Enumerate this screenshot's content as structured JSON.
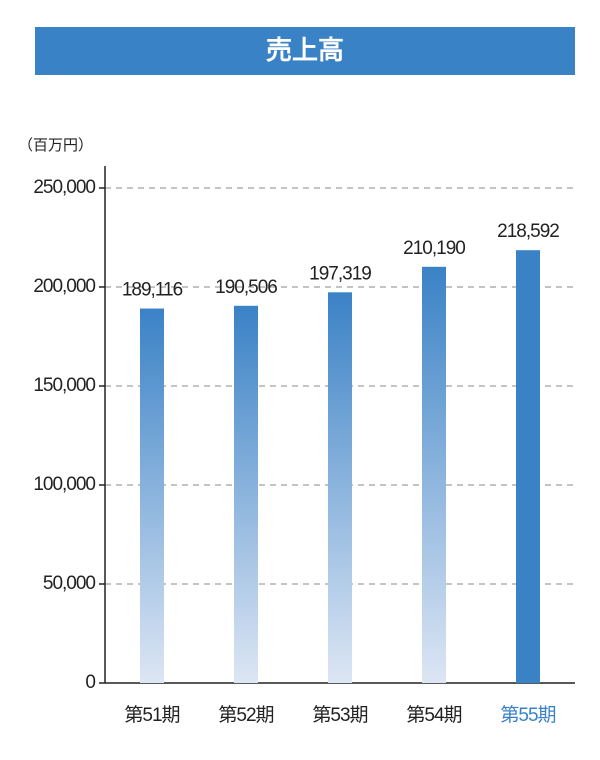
{
  "chart_data": {
    "type": "bar",
    "title": "売上高",
    "unit_label": "（百万円）",
    "categories": [
      "第51期",
      "第52期",
      "第53期",
      "第54期",
      "第55期"
    ],
    "values": [
      189116,
      190506,
      197319,
      210190,
      218592
    ],
    "value_labels": [
      "189,116",
      "190,506",
      "197,319",
      "210,190",
      "218,592"
    ],
    "color": "#3a82c6",
    "fade_color": "#dde6f4",
    "highlight": [
      false,
      false,
      false,
      false,
      true
    ],
    "ylim": [
      0,
      250000
    ],
    "yticks": [
      0,
      {
        "value": 50000,
        "label": "50,000"
      },
      {
        "value": 100000,
        "label": "100,000"
      },
      {
        "value": 150000,
        "label": "150,000"
      },
      {
        "value": 200000,
        "label": "200,000"
      },
      {
        "value": 250000,
        "label": "250,000"
      }
    ],
    "grid": true
  }
}
